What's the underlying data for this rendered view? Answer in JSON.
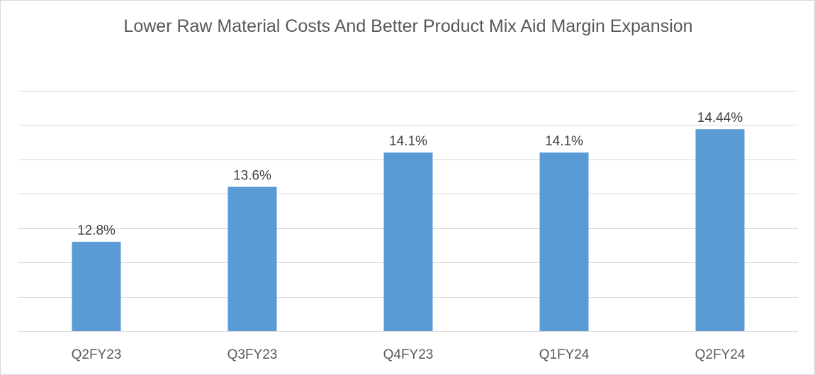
{
  "chart_data": {
    "type": "bar",
    "title": "Lower Raw Material Costs And Better Product Mix Aid Margin Expansion",
    "xlabel": "",
    "ylabel": "",
    "categories": [
      "Q2FY23",
      "Q3FY23",
      "Q4FY23",
      "Q1FY24",
      "Q2FY24"
    ],
    "values": [
      12.8,
      13.6,
      14.1,
      14.1,
      14.44
    ],
    "data_labels": [
      "12.8%",
      "13.6%",
      "14.1%",
      "14.1%",
      "14.44%"
    ],
    "ylim": [
      11.5,
      15.0
    ],
    "y_gridline_step": 0.5,
    "grid": true,
    "legend": "none",
    "colors": {
      "bar": "#5b9bd5",
      "grid": "#d9d9d9",
      "axis": "#d9d9d9",
      "title": "#595959",
      "label": "#404040"
    }
  }
}
